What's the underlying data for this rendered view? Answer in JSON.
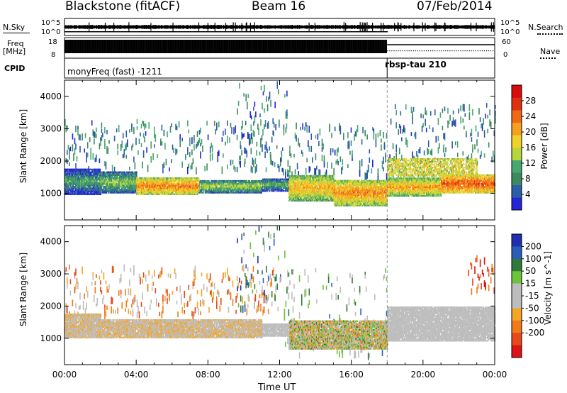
{
  "header": {
    "radar": "Blackstone (fitACF)",
    "beam": "Beam 16",
    "date": "07/Feb/2014"
  },
  "top_panels": {
    "nsky_label": "N.Sky",
    "nsky_ticks": [
      "10^5",
      "10^0"
    ],
    "nsearch_label": "N.Search",
    "nsearch_ticks": [
      "10^5",
      "10^0"
    ],
    "freq_label": "Freq",
    "freq_unit": "[MHz]",
    "freq_ticks": [
      "18",
      "8"
    ],
    "nave_label": "Nave",
    "nave_ticks": [
      "60",
      "0"
    ],
    "cpid_label": "CPID",
    "cpid_segments": [
      "monyFreq (fast) -1211",
      "rbsp-tau 210"
    ]
  },
  "colors": {
    "power": [
      "#2424d8",
      "#2b5ea8",
      "#3d8a5e",
      "#46a870",
      "#b7d63b",
      "#f2d12a",
      "#f5a020",
      "#f06a16",
      "#e03012",
      "#d80c0c"
    ],
    "velocity": [
      "#1f2fb0",
      "#2a5cbb",
      "#2f7a3a",
      "#6cc43c",
      "#bdbdbd",
      "#bdbdbd",
      "#f5a524",
      "#f07a18",
      "#e8481a",
      "#dc1414"
    ]
  },
  "chart_data": [
    {
      "type": "heatmap",
      "name": "power",
      "xlabel": "",
      "ylabel": "Slant Range [km]",
      "xlim": [
        0,
        24
      ],
      "ylim": [
        180,
        4500
      ],
      "yticks": [
        1000,
        2000,
        3000,
        4000
      ],
      "xticks": [
        0,
        4,
        8,
        12,
        16,
        20,
        24
      ],
      "colorbar": {
        "label": "Power [dB]",
        "ticks": [
          "4",
          "8",
          "12",
          "16",
          "20",
          "24",
          "28"
        ],
        "range": [
          0,
          30
        ]
      },
      "mode_change_hour": 18,
      "echo_bands": [
        {
          "start": 0.0,
          "end": 2.0,
          "range_low": 1000,
          "range_high": 1800,
          "power": 10
        },
        {
          "start": 2.0,
          "end": 4.0,
          "range_low": 1050,
          "range_high": 1700,
          "power": 13
        },
        {
          "start": 4.0,
          "end": 7.5,
          "range_low": 1000,
          "range_high": 1500,
          "power": 22
        },
        {
          "start": 7.5,
          "end": 11.0,
          "range_low": 1050,
          "range_high": 1450,
          "power": 14
        },
        {
          "start": 11.0,
          "end": 12.5,
          "range_low": 1100,
          "range_high": 1500,
          "power": 11
        },
        {
          "start": 12.5,
          "end": 15.0,
          "range_low": 800,
          "range_high": 1600,
          "power": 19
        },
        {
          "start": 15.0,
          "end": 18.0,
          "range_low": 650,
          "range_high": 1450,
          "power": 21
        },
        {
          "start": 18.0,
          "end": 21.0,
          "range_low": 950,
          "range_high": 1500,
          "power": 20
        },
        {
          "start": 21.0,
          "end": 24.0,
          "range_low": 1050,
          "range_high": 1600,
          "power": 24
        }
      ],
      "upper_bands": [
        {
          "start": 18.0,
          "end": 23.0,
          "range_low": 1550,
          "range_high": 2100,
          "power": 15
        }
      ],
      "sparse_regions": [
        {
          "start": 0.0,
          "end": 12.0,
          "range_low": 1800,
          "range_high": 3300,
          "power": 7
        },
        {
          "start": 9.5,
          "end": 12.5,
          "range_low": 2000,
          "range_high": 4500,
          "power": 6
        },
        {
          "start": 12.0,
          "end": 18.0,
          "range_low": 1600,
          "range_high": 3200,
          "power": 6
        },
        {
          "start": 18.0,
          "end": 24.0,
          "range_low": 2100,
          "range_high": 3800,
          "power": 7
        }
      ]
    },
    {
      "type": "heatmap",
      "name": "velocity",
      "xlabel": "Time UT",
      "ylabel": "Slant Range [km]",
      "xlim": [
        0,
        24
      ],
      "ylim": [
        180,
        4500
      ],
      "yticks": [
        1000,
        2000,
        3000,
        4000
      ],
      "xticks": [
        0,
        4,
        8,
        12,
        16,
        20,
        24
      ],
      "xticklabels": [
        "00:00",
        "04:00",
        "08:00",
        "12:00",
        "16:00",
        "20:00",
        "00:00"
      ],
      "colorbar": {
        "label": "Velocity [m s^-1]",
        "ticks": [
          "200",
          "100",
          "50",
          "15",
          "-15",
          "-50",
          "-100",
          "-200"
        ],
        "range": [
          -250,
          250
        ]
      },
      "mode_change_hour": 18,
      "echo_bands": [
        {
          "start": 0.0,
          "end": 2.0,
          "range_low": 1050,
          "range_high": 1800,
          "velocity": -40
        },
        {
          "start": 2.0,
          "end": 11.0,
          "range_low": 1050,
          "range_high": 1600,
          "velocity": -40
        },
        {
          "start": 11.0,
          "end": 12.5,
          "range_low": 1100,
          "range_high": 1500,
          "velocity": -20
        },
        {
          "start": 12.5,
          "end": 18.0,
          "range_low": 700,
          "range_high": 1600,
          "velocity": 0
        },
        {
          "start": 18.0,
          "end": 24.0,
          "range_low": 950,
          "range_high": 2000,
          "velocity": 0
        }
      ],
      "sparse_regions": [
        {
          "start": 0.0,
          "end": 12.0,
          "range_low": 1800,
          "range_high": 3300,
          "velocity": -80
        },
        {
          "start": 9.5,
          "end": 12.5,
          "range_low": 2000,
          "range_high": 4500,
          "velocity": 120
        },
        {
          "start": 12.0,
          "end": 18.0,
          "range_low": 500,
          "range_high": 3200,
          "velocity": 60
        },
        {
          "start": 22.5,
          "end": 24.0,
          "range_low": 2500,
          "range_high": 3600,
          "velocity": -180
        }
      ]
    }
  ],
  "xaxis": {
    "tick_labels": [
      "00:00",
      "04:00",
      "08:00",
      "12:00",
      "16:00",
      "20:00",
      "00:00"
    ],
    "title": "Time UT"
  }
}
